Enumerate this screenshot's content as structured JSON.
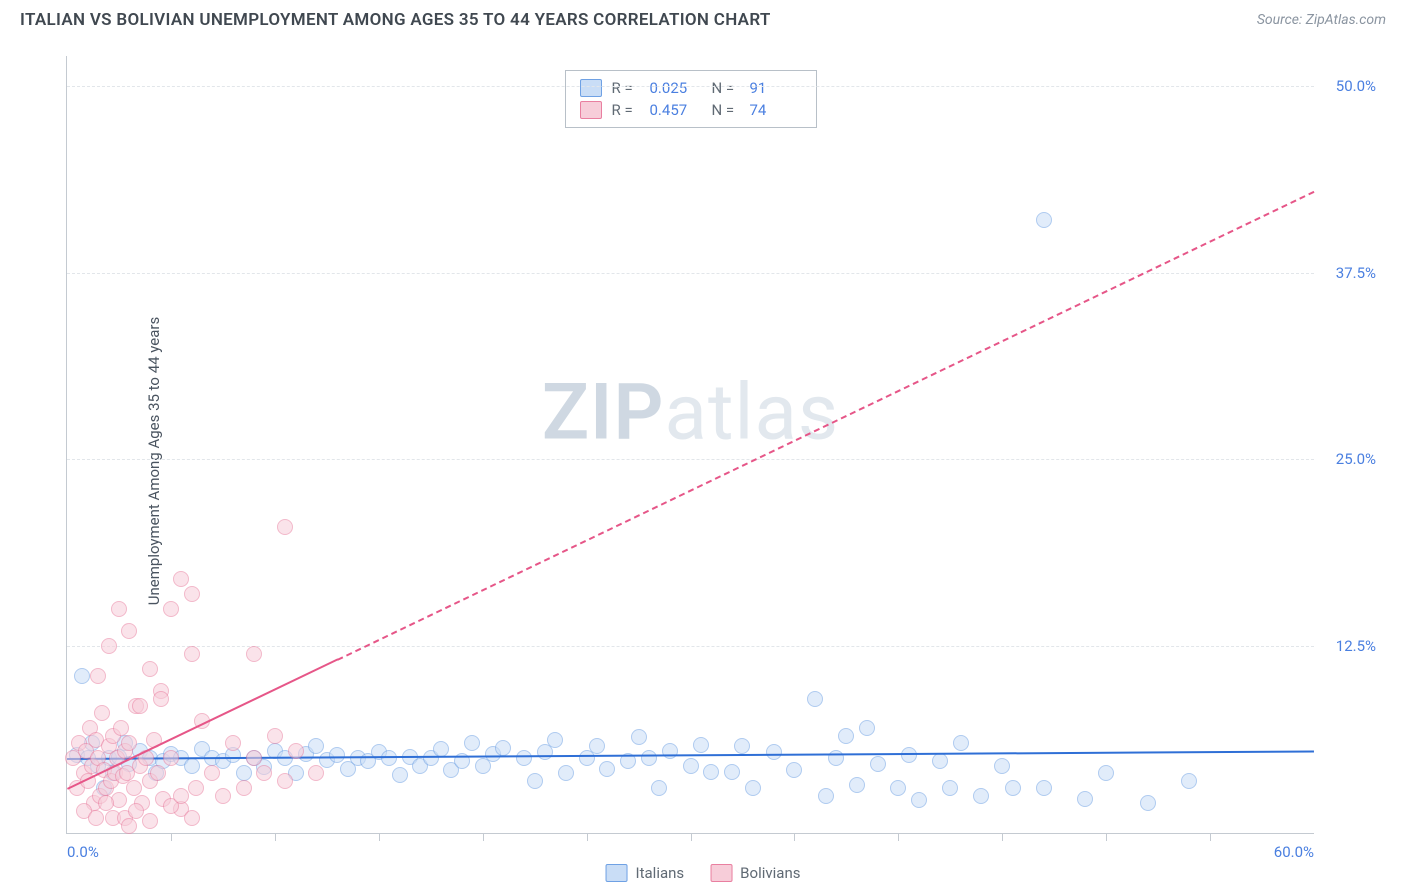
{
  "header": {
    "title": "ITALIAN VS BOLIVIAN UNEMPLOYMENT AMONG AGES 35 TO 44 YEARS CORRELATION CHART",
    "source_prefix": "Source: ",
    "source_name": "ZipAtlas.com"
  },
  "watermark": {
    "part1": "ZIP",
    "part2": "atlas"
  },
  "chart": {
    "type": "scatter",
    "ylabel": "Unemployment Among Ages 35 to 44 years",
    "xlim": [
      0,
      60
    ],
    "ylim": [
      0,
      52
    ],
    "xticks": [
      {
        "v": 0,
        "label": "0.0%",
        "align": "left"
      },
      {
        "v": 60,
        "label": "60.0%",
        "align": "right"
      }
    ],
    "xtick_marks": [
      5,
      10,
      15,
      20,
      25,
      30,
      35,
      40,
      45,
      50,
      55
    ],
    "yticks": [
      {
        "v": 12.5,
        "label": "12.5%"
      },
      {
        "v": 25.0,
        "label": "25.0%"
      },
      {
        "v": 37.5,
        "label": "37.5%"
      },
      {
        "v": 50.0,
        "label": "50.0%"
      }
    ],
    "grid_color": "#e2e6ea",
    "axis_color": "#c4cad1",
    "background_color": "#ffffff",
    "tick_label_color": "#4a7fe0",
    "marker_radius": 8,
    "marker_opacity": 0.55,
    "marker_border_width": 1.2,
    "series": [
      {
        "name": "Italians",
        "fill": "#c9ddf6",
        "stroke": "#6fa1e4",
        "line_color": "#2f6fd6",
        "r_label": "R =",
        "r_value": "0.025",
        "n_label": "N =",
        "n_value": "91",
        "trend": {
          "x1": 0,
          "y1": 5.0,
          "x2": 60,
          "y2": 5.5,
          "solid_to_x": 60
        },
        "points": [
          [
            0.5,
            5.2
          ],
          [
            0.7,
            10.5
          ],
          [
            1.0,
            5.0
          ],
          [
            1.2,
            6.0
          ],
          [
            1.5,
            4.5
          ],
          [
            1.8,
            3.0
          ],
          [
            2.0,
            5.0
          ],
          [
            2.2,
            4.0
          ],
          [
            2.5,
            5.1
          ],
          [
            2.8,
            6.0
          ],
          [
            3.0,
            4.6
          ],
          [
            3.5,
            5.5
          ],
          [
            4.0,
            5.0
          ],
          [
            4.3,
            4.0
          ],
          [
            4.6,
            4.8
          ],
          [
            5.0,
            5.3
          ],
          [
            5.5,
            5.0
          ],
          [
            6.0,
            4.5
          ],
          [
            6.5,
            5.6
          ],
          [
            7.0,
            5.0
          ],
          [
            7.5,
            4.8
          ],
          [
            8.0,
            5.2
          ],
          [
            8.5,
            4.0
          ],
          [
            9.0,
            5.0
          ],
          [
            9.5,
            4.4
          ],
          [
            10.0,
            5.5
          ],
          [
            10.5,
            5.0
          ],
          [
            11.0,
            4.0
          ],
          [
            11.5,
            5.3
          ],
          [
            12.0,
            5.8
          ],
          [
            12.5,
            4.9
          ],
          [
            13.0,
            5.2
          ],
          [
            13.5,
            4.3
          ],
          [
            14.0,
            5.0
          ],
          [
            14.5,
            4.8
          ],
          [
            15.0,
            5.4
          ],
          [
            15.5,
            5.0
          ],
          [
            16.0,
            3.9
          ],
          [
            16.5,
            5.1
          ],
          [
            17.0,
            4.5
          ],
          [
            17.5,
            5.0
          ],
          [
            18.0,
            5.6
          ],
          [
            18.5,
            4.2
          ],
          [
            19.0,
            4.8
          ],
          [
            19.5,
            6.0
          ],
          [
            20.0,
            4.5
          ],
          [
            20.5,
            5.3
          ],
          [
            21.0,
            5.7
          ],
          [
            22.0,
            5.0
          ],
          [
            22.5,
            3.5
          ],
          [
            23.0,
            5.4
          ],
          [
            23.5,
            6.2
          ],
          [
            24.0,
            4.0
          ],
          [
            25.0,
            5.0
          ],
          [
            25.5,
            5.8
          ],
          [
            26.0,
            4.3
          ],
          [
            27.0,
            4.8
          ],
          [
            27.5,
            6.4
          ],
          [
            28.0,
            5.0
          ],
          [
            28.5,
            3.0
          ],
          [
            29.0,
            5.5
          ],
          [
            30.0,
            4.5
          ],
          [
            30.5,
            5.9
          ],
          [
            31.0,
            4.1
          ],
          [
            32.0,
            4.1
          ],
          [
            32.5,
            5.8
          ],
          [
            33.0,
            3.0
          ],
          [
            34.0,
            5.4
          ],
          [
            35.0,
            4.2
          ],
          [
            36.0,
            9.0
          ],
          [
            36.5,
            2.5
          ],
          [
            37.0,
            5.0
          ],
          [
            37.5,
            6.5
          ],
          [
            38.0,
            3.2
          ],
          [
            38.5,
            7.0
          ],
          [
            39.0,
            4.6
          ],
          [
            40.0,
            3.0
          ],
          [
            40.5,
            5.2
          ],
          [
            41.0,
            2.2
          ],
          [
            42.0,
            4.8
          ],
          [
            42.5,
            3.0
          ],
          [
            43.0,
            6.0
          ],
          [
            44.0,
            2.5
          ],
          [
            45.0,
            4.5
          ],
          [
            45.5,
            3.0
          ],
          [
            47.0,
            3.0
          ],
          [
            49.0,
            2.3
          ],
          [
            50.0,
            4.0
          ],
          [
            52.0,
            2.0
          ],
          [
            47.0,
            41.0
          ],
          [
            54.0,
            3.5
          ]
        ]
      },
      {
        "name": "Bolivians",
        "fill": "#f7cdd9",
        "stroke": "#e97fa0",
        "line_color": "#e65688",
        "r_label": "R =",
        "r_value": "0.457",
        "n_label": "N =",
        "n_value": "74",
        "trend": {
          "x1": 0,
          "y1": 3.0,
          "x2": 60,
          "y2": 43.0,
          "solid_to_x": 13
        },
        "points": [
          [
            0.3,
            5.0
          ],
          [
            0.5,
            3.0
          ],
          [
            0.6,
            6.0
          ],
          [
            0.8,
            4.0
          ],
          [
            0.9,
            5.5
          ],
          [
            1.0,
            3.5
          ],
          [
            1.1,
            7.0
          ],
          [
            1.2,
            4.5
          ],
          [
            1.3,
            2.0
          ],
          [
            1.4,
            6.2
          ],
          [
            1.5,
            5.0
          ],
          [
            1.6,
            2.5
          ],
          [
            1.7,
            8.0
          ],
          [
            1.8,
            4.2
          ],
          [
            1.9,
            3.0
          ],
          [
            2.0,
            5.8
          ],
          [
            2.1,
            3.5
          ],
          [
            2.2,
            6.5
          ],
          [
            2.3,
            4.0
          ],
          [
            2.4,
            5.0
          ],
          [
            2.5,
            2.2
          ],
          [
            2.6,
            7.0
          ],
          [
            2.7,
            3.8
          ],
          [
            2.8,
            5.5
          ],
          [
            2.9,
            4.0
          ],
          [
            3.0,
            6.0
          ],
          [
            3.2,
            3.0
          ],
          [
            3.3,
            8.5
          ],
          [
            3.5,
            4.5
          ],
          [
            3.6,
            2.0
          ],
          [
            3.8,
            5.0
          ],
          [
            4.0,
            3.5
          ],
          [
            4.2,
            6.2
          ],
          [
            4.4,
            4.0
          ],
          [
            4.5,
            9.5
          ],
          [
            4.6,
            2.3
          ],
          [
            5.0,
            5.0
          ],
          [
            5.5,
            1.6
          ],
          [
            6.0,
            12.0
          ],
          [
            6.2,
            3.0
          ],
          [
            6.5,
            7.5
          ],
          [
            7.0,
            4.0
          ],
          [
            7.5,
            2.5
          ],
          [
            8.0,
            6.0
          ],
          [
            8.5,
            3.0
          ],
          [
            9.0,
            5.0
          ],
          [
            9.5,
            4.0
          ],
          [
            10.0,
            6.5
          ],
          [
            10.5,
            3.5
          ],
          [
            11.0,
            5.5
          ],
          [
            12.0,
            4.0
          ],
          [
            1.5,
            10.5
          ],
          [
            2.0,
            12.5
          ],
          [
            2.5,
            15.0
          ],
          [
            3.0,
            13.5
          ],
          [
            3.5,
            8.5
          ],
          [
            4.0,
            11.0
          ],
          [
            4.5,
            9.0
          ],
          [
            2.2,
            1.0
          ],
          [
            2.8,
            1.0
          ],
          [
            3.3,
            1.5
          ],
          [
            4.0,
            0.8
          ],
          [
            5.0,
            1.8
          ],
          [
            5.5,
            2.5
          ],
          [
            6.0,
            1.0
          ],
          [
            5.0,
            15.0
          ],
          [
            5.5,
            17.0
          ],
          [
            6.0,
            16.0
          ],
          [
            9.0,
            12.0
          ],
          [
            10.5,
            20.5
          ],
          [
            0.8,
            1.5
          ],
          [
            1.4,
            1.0
          ],
          [
            1.9,
            2.0
          ],
          [
            3.0,
            0.5
          ]
        ]
      }
    ],
    "bottom_legend": [
      {
        "label": "Italians",
        "fill": "#c9ddf6",
        "stroke": "#6fa1e4"
      },
      {
        "label": "Bolivians",
        "fill": "#f7cdd9",
        "stroke": "#e97fa0"
      }
    ]
  }
}
